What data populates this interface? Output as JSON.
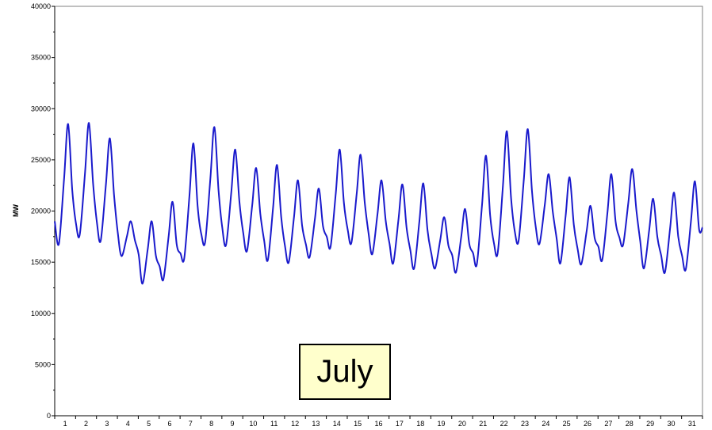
{
  "chart_data": {
    "type": "line",
    "title": "",
    "xlabel": "",
    "ylabel": "MW",
    "ylim": [
      0,
      40000
    ],
    "yticks": [
      "0",
      "5000",
      "10000",
      "15000",
      "20000",
      "25000",
      "30000",
      "35000",
      "40000"
    ],
    "xticks": [
      "1",
      "2",
      "3",
      "4",
      "5",
      "6",
      "7",
      "8",
      "9",
      "10",
      "11",
      "12",
      "13",
      "14",
      "15",
      "16",
      "17",
      "18",
      "19",
      "20",
      "21",
      "22",
      "23",
      "24",
      "25",
      "26",
      "27",
      "28",
      "29",
      "30",
      "31"
    ],
    "grid": false,
    "legend": "none",
    "line_color": "#1a1acc",
    "annotation": "July",
    "series": [
      {
        "daily": [
          {
            "day": 1,
            "min": 16800,
            "max": 28500
          },
          {
            "day": 2,
            "min": 17700,
            "max": 28600
          },
          {
            "day": 3,
            "min": 17100,
            "max": 27100
          },
          {
            "day": 4,
            "min": 15600,
            "max": 19000
          },
          {
            "day": 5,
            "min": 12900,
            "max": 19000
          },
          {
            "day": 6,
            "min": 13300,
            "max": 20900
          },
          {
            "day": 7,
            "min": 15400,
            "max": 26600
          },
          {
            "day": 8,
            "min": 17000,
            "max": 28200
          },
          {
            "day": 9,
            "min": 16700,
            "max": 26000
          },
          {
            "day": 10,
            "min": 16100,
            "max": 24200
          },
          {
            "day": 11,
            "min": 15200,
            "max": 24500
          },
          {
            "day": 12,
            "min": 15000,
            "max": 23000
          },
          {
            "day": 13,
            "min": 15500,
            "max": 22200
          },
          {
            "day": 14,
            "min": 16500,
            "max": 26000
          },
          {
            "day": 15,
            "min": 16900,
            "max": 25500
          },
          {
            "day": 16,
            "min": 15800,
            "max": 23000
          },
          {
            "day": 17,
            "min": 14900,
            "max": 22600
          },
          {
            "day": 18,
            "min": 14400,
            "max": 22700
          },
          {
            "day": 19,
            "min": 14400,
            "max": 19400
          },
          {
            "day": 20,
            "min": 14000,
            "max": 20200
          },
          {
            "day": 21,
            "min": 14800,
            "max": 25400
          },
          {
            "day": 22,
            "min": 15900,
            "max": 27800
          },
          {
            "day": 23,
            "min": 17100,
            "max": 28000
          },
          {
            "day": 24,
            "min": 16800,
            "max": 23600
          },
          {
            "day": 25,
            "min": 14900,
            "max": 23300
          },
          {
            "day": 26,
            "min": 14800,
            "max": 20500
          },
          {
            "day": 27,
            "min": 15200,
            "max": 23600
          },
          {
            "day": 28,
            "min": 16700,
            "max": 24100
          },
          {
            "day": 29,
            "min": 14400,
            "max": 21200
          },
          {
            "day": 30,
            "min": 14000,
            "max": 21800
          },
          {
            "day": 31,
            "min": 14300,
            "max": 22900
          }
        ],
        "end_value": 18400
      }
    ]
  }
}
